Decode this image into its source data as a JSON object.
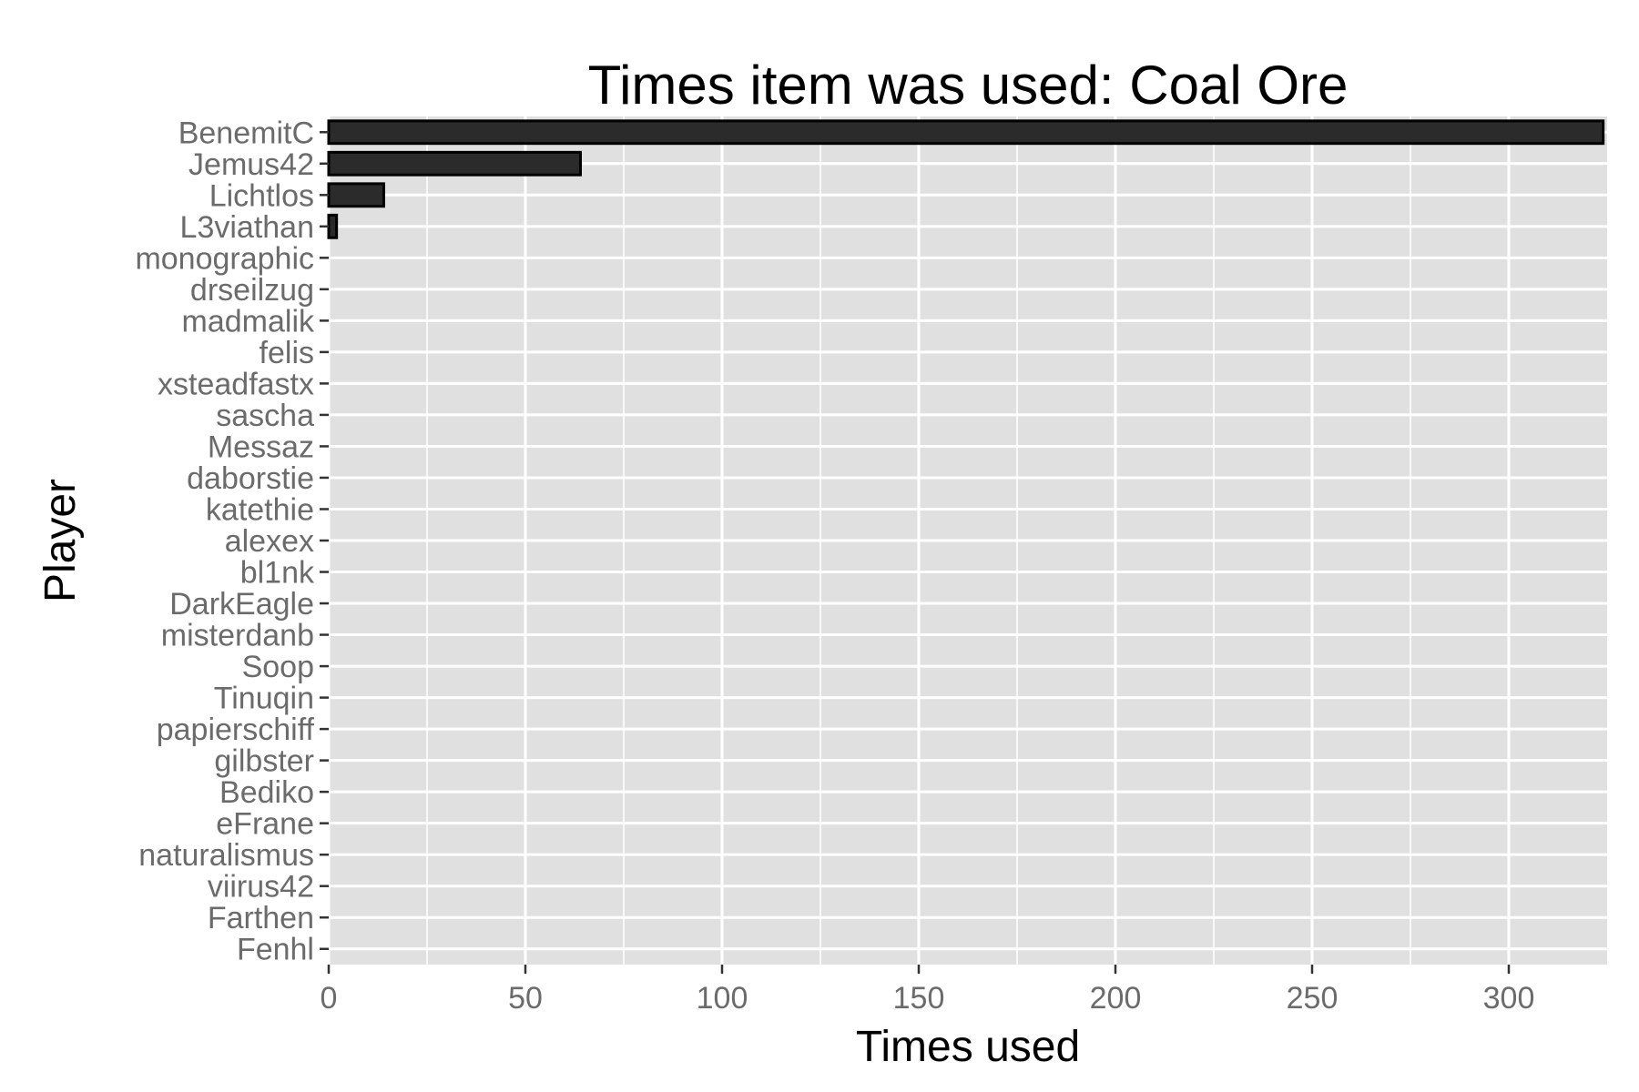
{
  "chart_data": {
    "type": "bar",
    "orientation": "horizontal",
    "title": "Times item was used: Coal Ore",
    "xlabel": "Times used",
    "ylabel": "Player",
    "categories": [
      "BenemitC",
      "Jemus42",
      "Lichtlos",
      "L3viathan",
      "monographic",
      "drseilzug",
      "madmalik",
      "felis",
      "xsteadfastx",
      "sascha",
      "Messaz",
      "daborstie",
      "katethie",
      "alexex",
      "bl1nk",
      "DarkEagle",
      "misterdanb",
      "Soop",
      "Tinuqin",
      "papierschiff",
      "gilbster",
      "Bediko",
      "eFrane",
      "naturalismus",
      "viirus42",
      "Farthen",
      "Fenhl"
    ],
    "values": [
      324,
      64,
      14,
      2,
      0,
      0,
      0,
      0,
      0,
      0,
      0,
      0,
      0,
      0,
      0,
      0,
      0,
      0,
      0,
      0,
      0,
      0,
      0,
      0,
      0,
      0,
      0
    ],
    "xlim": [
      0,
      325
    ],
    "xticks": [
      0,
      50,
      100,
      150,
      200,
      250,
      300
    ],
    "grid": true,
    "legend": "none",
    "colors": {
      "panel_background": "#e0e0e0",
      "grid": "#ffffff",
      "bar_fill": "#2b2b2b",
      "bar_stroke": "#000000",
      "tick_text": "#6b6b6b",
      "tick_mark": "#333333"
    }
  }
}
